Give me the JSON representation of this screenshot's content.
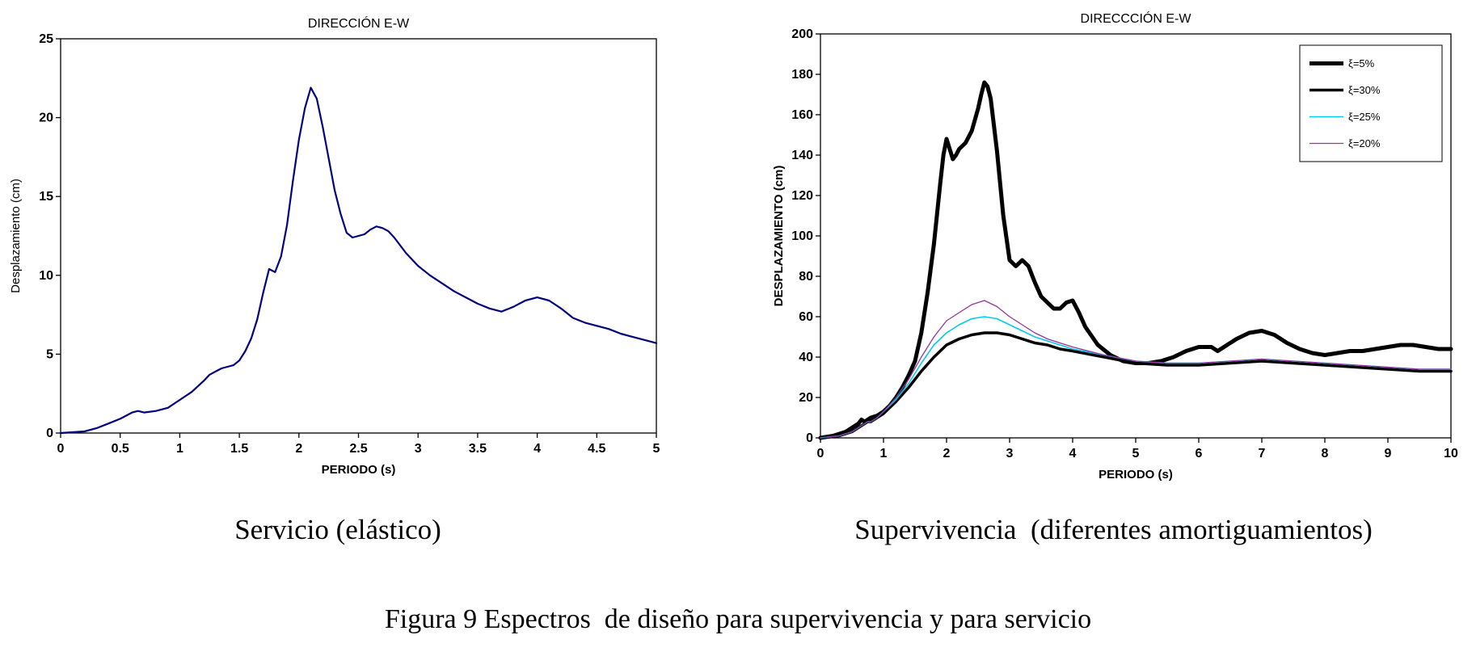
{
  "captions": {
    "left": "Servicio (elástico)",
    "right": "Supervivencia  (diferentes amortiguamientos)",
    "figure": "Figura 9 Espectros  de diseño para supervivencia y para servicio"
  },
  "chart_data": [
    {
      "type": "line",
      "title": "DIRECCIÓN E-W",
      "xlabel": "PERIODO (s)",
      "ylabel": "Desplazamiento (cm)",
      "xlim": [
        0,
        5
      ],
      "ylim": [
        0,
        25
      ],
      "xticks": [
        0,
        0.5,
        1,
        1.5,
        2,
        2.5,
        3,
        3.5,
        4,
        4.5,
        5
      ],
      "yticks": [
        0,
        5,
        10,
        15,
        20,
        25
      ],
      "grid": false,
      "legend": false,
      "series": [
        {
          "name": "Servicio (elástico)",
          "color": "#000080",
          "width": 2.2,
          "x": [
            0,
            0.1,
            0.2,
            0.3,
            0.4,
            0.5,
            0.55,
            0.6,
            0.65,
            0.7,
            0.8,
            0.9,
            1.0,
            1.1,
            1.2,
            1.25,
            1.3,
            1.35,
            1.4,
            1.45,
            1.5,
            1.55,
            1.6,
            1.65,
            1.7,
            1.75,
            1.8,
            1.85,
            1.9,
            1.95,
            2.0,
            2.05,
            2.1,
            2.15,
            2.2,
            2.25,
            2.3,
            2.35,
            2.4,
            2.45,
            2.5,
            2.55,
            2.6,
            2.65,
            2.7,
            2.75,
            2.8,
            2.9,
            3.0,
            3.1,
            3.2,
            3.3,
            3.4,
            3.5,
            3.6,
            3.7,
            3.8,
            3.9,
            4.0,
            4.1,
            4.2,
            4.3,
            4.4,
            4.5,
            4.6,
            4.7,
            4.8,
            4.9,
            5.0
          ],
          "y": [
            0,
            0.05,
            0.1,
            0.3,
            0.6,
            0.9,
            1.1,
            1.3,
            1.4,
            1.3,
            1.4,
            1.6,
            2.1,
            2.6,
            3.3,
            3.7,
            3.9,
            4.1,
            4.2,
            4.3,
            4.6,
            5.2,
            6.0,
            7.2,
            8.9,
            10.4,
            10.2,
            11.2,
            13.2,
            16.0,
            18.6,
            20.6,
            21.9,
            21.2,
            19.4,
            17.4,
            15.4,
            13.9,
            12.7,
            12.4,
            12.5,
            12.6,
            12.9,
            13.1,
            13.0,
            12.8,
            12.4,
            11.4,
            10.6,
            10.0,
            9.5,
            9.0,
            8.6,
            8.2,
            7.9,
            7.7,
            8.0,
            8.4,
            8.6,
            8.4,
            7.9,
            7.3,
            7.0,
            6.8,
            6.6,
            6.3,
            6.1,
            5.9,
            5.7
          ]
        }
      ]
    },
    {
      "type": "line",
      "title": "DIRECCCIÓN E-W",
      "xlabel": "PERIODO (s)",
      "ylabel": "DESPLAZAMIENTO (cm)",
      "xlim": [
        0,
        10
      ],
      "ylim": [
        0,
        200
      ],
      "xticks": [
        0,
        1,
        2,
        3,
        4,
        5,
        6,
        7,
        8,
        9,
        10
      ],
      "yticks": [
        0,
        20,
        40,
        60,
        80,
        100,
        120,
        140,
        160,
        180,
        200
      ],
      "grid": false,
      "legend": true,
      "series": [
        {
          "name": "ξ=5%",
          "color": "#000000",
          "width": 5,
          "x": [
            0,
            0.2,
            0.4,
            0.5,
            0.6,
            0.65,
            0.7,
            0.75,
            0.8,
            0.9,
            1.0,
            1.1,
            1.2,
            1.3,
            1.4,
            1.5,
            1.6,
            1.7,
            1.8,
            1.9,
            1.95,
            2.0,
            2.05,
            2.1,
            2.15,
            2.2,
            2.3,
            2.4,
            2.5,
            2.55,
            2.6,
            2.65,
            2.7,
            2.8,
            2.9,
            3.0,
            3.1,
            3.2,
            3.3,
            3.4,
            3.5,
            3.6,
            3.7,
            3.8,
            3.9,
            4.0,
            4.1,
            4.2,
            4.4,
            4.6,
            4.8,
            5.0,
            5.2,
            5.4,
            5.6,
            5.8,
            6.0,
            6.2,
            6.3,
            6.4,
            6.6,
            6.8,
            7.0,
            7.2,
            7.4,
            7.6,
            7.8,
            8.0,
            8.2,
            8.4,
            8.6,
            8.8,
            9.0,
            9.2,
            9.4,
            9.6,
            9.8,
            10.0
          ],
          "y": [
            0,
            1,
            3,
            5,
            7,
            9,
            8,
            9,
            10,
            11,
            13,
            16,
            20,
            25,
            31,
            38,
            52,
            72,
            96,
            126,
            140,
            148,
            143,
            138,
            140,
            143,
            146,
            152,
            163,
            170,
            176,
            174,
            168,
            142,
            110,
            88,
            85,
            88,
            85,
            77,
            70,
            67,
            64,
            64,
            67,
            68,
            62,
            55,
            46,
            41,
            38,
            37,
            37,
            38,
            40,
            43,
            45,
            45,
            43,
            45,
            49,
            52,
            53,
            51,
            47,
            44,
            42,
            41,
            42,
            43,
            43,
            44,
            45,
            46,
            46,
            45,
            44,
            44
          ]
        },
        {
          "name": "ξ=30%",
          "color": "#000000",
          "width": 3.5,
          "x": [
            0,
            0.3,
            0.5,
            0.6,
            0.7,
            0.75,
            0.8,
            0.9,
            1.0,
            1.2,
            1.4,
            1.6,
            1.8,
            2.0,
            2.2,
            2.4,
            2.6,
            2.8,
            3.0,
            3.2,
            3.4,
            3.6,
            3.8,
            4.0,
            4.5,
            5.0,
            5.5,
            6.0,
            6.5,
            7.0,
            7.5,
            8.0,
            8.5,
            9.0,
            9.5,
            10.0
          ],
          "y": [
            0,
            1,
            3,
            5,
            7,
            8,
            8,
            10,
            12,
            18,
            25,
            33,
            40,
            46,
            49,
            51,
            52,
            52,
            51,
            49,
            47,
            46,
            44,
            43,
            40,
            37,
            36,
            36,
            37,
            38,
            37,
            36,
            35,
            34,
            33,
            33
          ]
        },
        {
          "name": "ξ=25%",
          "color": "#00ccee",
          "width": 1.6,
          "x": [
            0,
            0.3,
            0.5,
            0.6,
            0.7,
            0.75,
            0.8,
            0.9,
            1.0,
            1.2,
            1.4,
            1.6,
            1.8,
            2.0,
            2.2,
            2.4,
            2.6,
            2.8,
            3.0,
            3.2,
            3.4,
            3.6,
            3.8,
            4.0,
            4.5,
            5.0,
            5.5,
            6.0,
            6.5,
            7.0,
            7.5,
            8.0,
            8.5,
            9.0,
            9.5,
            10.0
          ],
          "y": [
            0,
            1,
            3,
            5,
            7,
            8,
            8,
            10,
            13,
            19,
            27,
            37,
            46,
            52,
            56,
            59,
            60,
            59,
            56,
            53,
            50,
            48,
            46,
            44,
            41,
            38,
            37,
            37,
            38,
            39,
            38,
            37,
            36,
            35,
            34,
            34
          ]
        },
        {
          "name": "ξ=20%",
          "color": "#993399",
          "width": 1.3,
          "x": [
            0,
            0.3,
            0.5,
            0.6,
            0.7,
            0.75,
            0.8,
            0.9,
            1.0,
            1.2,
            1.4,
            1.6,
            1.8,
            2.0,
            2.2,
            2.4,
            2.6,
            2.8,
            3.0,
            3.2,
            3.4,
            3.6,
            3.8,
            4.0,
            4.5,
            5.0,
            5.5,
            6.0,
            6.5,
            7.0,
            7.5,
            8.0,
            8.5,
            9.0,
            9.5,
            10.0
          ],
          "y": [
            0,
            1,
            3,
            5,
            7,
            8,
            8,
            10,
            13,
            20,
            29,
            40,
            50,
            58,
            62,
            66,
            68,
            65,
            60,
            56,
            52,
            49,
            47,
            45,
            41,
            38,
            37,
            37,
            38,
            39,
            38,
            37,
            36,
            35,
            34,
            34
          ]
        }
      ]
    }
  ]
}
